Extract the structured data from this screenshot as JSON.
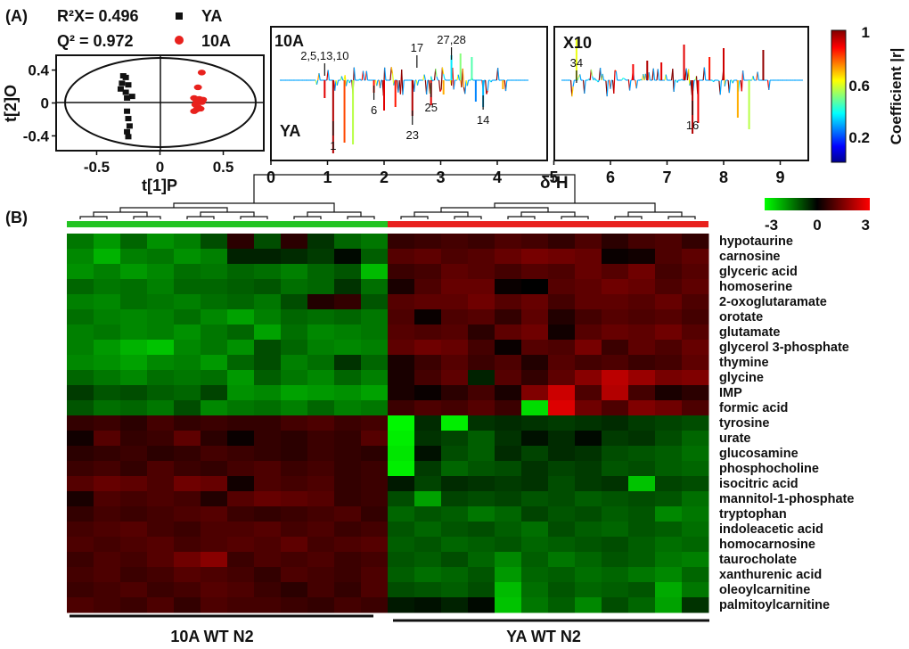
{
  "panel_labels": {
    "a": "(A)",
    "b": "(B)"
  },
  "chart_data": [
    {
      "type": "scatter",
      "name": "OPLS-DA score plot",
      "stats": {
        "r2x": "R²X= 0.496",
        "q2": "Q² = 0.972"
      },
      "xlabel": "t[1]P",
      "ylabel": "t[2]O",
      "xlim": [
        -0.82,
        0.82
      ],
      "ylim": [
        -0.58,
        0.58
      ],
      "xticks": [
        -0.5,
        0,
        0.5
      ],
      "xtick_labels": [
        "-0.5",
        "0",
        "0.5"
      ],
      "yticks": [
        0.4,
        0,
        -0.4
      ],
      "ytick_labels": [
        "0.4",
        "0",
        "-0.4"
      ],
      "legend": [
        {
          "label": "YA",
          "color": "#111111",
          "marker": "square"
        },
        {
          "label": "10A",
          "color": "#e8211d",
          "marker": "circle"
        }
      ],
      "series": [
        {
          "name": "YA",
          "color": "#111111",
          "x": [
            -0.29,
            -0.27,
            -0.3,
            -0.25,
            -0.31,
            -0.27,
            -0.26,
            -0.22,
            -0.26,
            -0.25,
            -0.24,
            -0.26,
            -0.25
          ],
          "y": [
            0.33,
            0.31,
            0.24,
            0.22,
            0.17,
            0.13,
            0.06,
            0.08,
            -0.1,
            -0.19,
            -0.28,
            -0.35,
            -0.41
          ]
        },
        {
          "name": "10A",
          "color": "#e8211d",
          "x": [
            0.33,
            0.3,
            0.27,
            0.31,
            0.34,
            0.29,
            0.33,
            0.28,
            0.3,
            0.32,
            0.29,
            0.27
          ],
          "y": [
            0.37,
            0.19,
            0.06,
            0.05,
            0.04,
            0.02,
            0.01,
            -0.02,
            -0.05,
            -0.07,
            -0.08,
            -0.1
          ]
        }
      ]
    },
    {
      "type": "line",
      "name": "OPLS-DA coefficient plot",
      "xlabel": "δ¹H",
      "xticks": [
        0,
        1,
        2,
        3,
        4,
        5,
        6,
        7,
        8,
        9
      ],
      "top_group": "10A",
      "bottom_group": "YA",
      "scale_note": "X10",
      "colorbar": {
        "title": "Coefficient |r|",
        "ticks": [
          "1",
          "0.6",
          "0.2"
        ]
      },
      "peak_labels": [
        {
          "text": "2,5,13,10",
          "ppm": 0.95
        },
        {
          "text": "17",
          "ppm": 2.58
        },
        {
          "text": "27,28",
          "ppm": 3.19
        },
        {
          "text": "34",
          "ppm": 5.4
        },
        {
          "text": "6",
          "ppm": 1.82
        },
        {
          "text": "25",
          "ppm": 2.83
        },
        {
          "text": "14",
          "ppm": 3.75
        },
        {
          "text": "1",
          "ppm": 1.1
        },
        {
          "text": "23",
          "ppm": 2.5
        },
        {
          "text": "16",
          "ppm": 7.45
        }
      ]
    },
    {
      "type": "heatmap",
      "name": "Metabolite heatmap",
      "colorbar_ticks": [
        "-3",
        "0",
        "3"
      ],
      "groups": [
        {
          "label": "10A WT N2",
          "color": "#22c322",
          "n": 12
        },
        {
          "label": "YA WT N2",
          "color": "#e8211d",
          "n": 12
        }
      ],
      "rows": [
        "hypotaurine",
        "carnosine",
        "glyceric acid",
        "homoserine",
        "2-oxoglutaramate",
        "orotate",
        "glutamate",
        "glycerol 3-phosphate",
        "thymine",
        "glycine",
        "IMP",
        "formic acid",
        "tyrosine",
        "urate",
        "glucosamine",
        "phosphocholine",
        "isocitric acid",
        "mannitol-1-phosphate",
        "tryptophan",
        "indoleacetic acid",
        "homocarnosine",
        "taurocholate",
        "xanthurenic acid",
        "oleoylcarnitine",
        "palmitoylcarnitine"
      ],
      "values": [
        [
          -1.4,
          -1.8,
          -1.2,
          -1.7,
          -1.5,
          -0.9,
          0.5,
          -0.9,
          0.5,
          -0.6,
          -1.2,
          -1.4,
          0.6,
          0.7,
          0.8,
          0.7,
          0.9,
          0.8,
          0.6,
          0.9,
          0.5,
          0.8,
          0.9,
          0.6
        ],
        [
          -1.6,
          -2.1,
          -1.5,
          -1.4,
          -1.7,
          -1.5,
          -0.4,
          -0.4,
          -0.5,
          -0.7,
          -0.1,
          -1.1,
          1.0,
          1.1,
          0.9,
          1.0,
          1.2,
          1.4,
          1.3,
          1.2,
          0.1,
          0.2,
          0.9,
          1.1
        ],
        [
          -1.7,
          -1.5,
          -1.8,
          -1.6,
          -1.3,
          -1.4,
          -1.2,
          -1.3,
          -1.5,
          -1.2,
          -1.0,
          -2.2,
          0.7,
          0.8,
          1.1,
          1.0,
          0.8,
          1.0,
          0.9,
          1.2,
          1.0,
          1.3,
          0.8,
          1.0
        ],
        [
          -1.2,
          -1.4,
          -1.3,
          -1.5,
          -1.2,
          -1.2,
          -1.1,
          -1.0,
          -1.3,
          -1.2,
          -0.6,
          -1.3,
          0.3,
          0.9,
          1.2,
          1.2,
          0.1,
          0.0,
          1.0,
          1.1,
          1.3,
          1.2,
          0.9,
          1.1
        ],
        [
          -1.5,
          -1.6,
          -1.3,
          -1.4,
          -1.5,
          -1.3,
          -1.2,
          -1.4,
          -0.9,
          0.4,
          0.6,
          -1.0,
          1.0,
          1.1,
          1.1,
          1.3,
          1.0,
          1.2,
          0.8,
          1.1,
          1.1,
          1.0,
          1.2,
          0.9
        ],
        [
          -1.3,
          -1.5,
          -1.6,
          -1.5,
          -1.3,
          -1.6,
          -1.9,
          -1.5,
          -1.2,
          -1.3,
          -1.2,
          -1.4,
          0.9,
          0.1,
          0.9,
          1.0,
          0.6,
          1.1,
          0.4,
          0.8,
          1.0,
          0.9,
          1.0,
          0.8
        ],
        [
          -1.5,
          -1.4,
          -1.6,
          -1.5,
          -1.7,
          -1.4,
          -1.2,
          -1.9,
          -1.3,
          -1.6,
          -1.5,
          -1.4,
          1.0,
          0.9,
          1.0,
          0.5,
          1.1,
          1.3,
          0.2,
          1.0,
          1.2,
          1.1,
          1.3,
          1.0
        ],
        [
          -1.5,
          -1.8,
          -2.1,
          -2.3,
          -1.6,
          -1.4,
          -1.7,
          -0.9,
          -1.2,
          -1.5,
          -1.6,
          -1.5,
          1.1,
          1.3,
          1.2,
          0.8,
          0.1,
          1.0,
          0.9,
          1.4,
          0.7,
          1.1,
          0.9,
          1.2
        ],
        [
          -1.6,
          -1.7,
          -1.9,
          -1.6,
          -1.5,
          -1.8,
          -1.2,
          -0.9,
          -1.5,
          -1.3,
          -0.6,
          -1.2,
          0.3,
          0.7,
          1.0,
          0.7,
          0.9,
          0.4,
          1.0,
          0.8,
          0.9,
          0.7,
          0.8,
          1.1
        ],
        [
          -1.2,
          -1.4,
          -1.6,
          -1.3,
          -1.4,
          -1.3,
          -1.8,
          -1.1,
          -1.4,
          -1.6,
          -1.2,
          -1.5,
          0.3,
          0.8,
          1.1,
          -0.4,
          1.0,
          0.6,
          1.1,
          1.6,
          2.2,
          1.8,
          1.4,
          1.5
        ],
        [
          -0.7,
          -1.0,
          -0.9,
          -1.1,
          -1.2,
          -0.8,
          -1.7,
          -1.6,
          -1.9,
          -1.8,
          -1.7,
          -1.9,
          0.3,
          0.1,
          0.5,
          0.8,
          0.3,
          1.5,
          2.4,
          0.9,
          2.1,
          0.8,
          0.3,
          0.5
        ],
        [
          -1.0,
          -1.3,
          -1.2,
          -1.4,
          -0.9,
          -1.6,
          -1.4,
          -1.3,
          -1.5,
          -1.2,
          -1.5,
          -1.4,
          0.7,
          0.9,
          0.8,
          1.0,
          0.7,
          -2.6,
          2.6,
          1.3,
          0.9,
          1.5,
          1.3,
          0.9
        ],
        [
          0.6,
          0.7,
          0.5,
          0.8,
          0.6,
          0.7,
          0.6,
          0.6,
          0.8,
          0.9,
          0.7,
          0.8,
          -2.9,
          -0.5,
          -2.8,
          -0.6,
          -0.5,
          -0.6,
          -0.7,
          -0.6,
          -0.5,
          -0.7,
          -0.8,
          -0.9
        ],
        [
          0.2,
          1.0,
          0.6,
          0.7,
          1.1,
          0.5,
          0.1,
          0.6,
          0.5,
          0.7,
          0.6,
          1.0,
          -2.8,
          -0.6,
          -0.8,
          -1.1,
          -0.6,
          -0.2,
          -0.5,
          -0.1,
          -0.7,
          -0.6,
          -0.9,
          -1.2
        ],
        [
          0.5,
          0.6,
          0.7,
          0.5,
          0.6,
          0.8,
          0.7,
          0.6,
          0.5,
          0.7,
          0.6,
          0.5,
          -2.7,
          -0.2,
          -0.9,
          -1.1,
          -0.5,
          -0.8,
          -0.5,
          -0.6,
          -0.9,
          -1.0,
          -1.1,
          -1.3
        ],
        [
          0.7,
          0.8,
          0.6,
          0.9,
          0.7,
          0.6,
          0.8,
          0.9,
          0.7,
          0.8,
          0.6,
          0.7,
          -2.8,
          -0.7,
          -1.2,
          -1.0,
          -0.9,
          -0.6,
          -0.8,
          -0.7,
          -1.0,
          -0.9,
          -1.1,
          -1.2
        ],
        [
          1.0,
          1.2,
          1.1,
          0.9,
          1.3,
          1.2,
          0.2,
          0.9,
          0.8,
          0.9,
          0.6,
          0.7,
          -0.3,
          -0.8,
          -0.5,
          -0.6,
          -0.7,
          -0.6,
          -0.9,
          -0.7,
          -0.6,
          -2.3,
          -0.8,
          -0.9
        ],
        [
          0.3,
          0.9,
          0.8,
          0.9,
          0.8,
          0.4,
          1.0,
          1.2,
          1.1,
          1.0,
          0.6,
          0.7,
          -0.9,
          -1.9,
          -0.8,
          -0.9,
          -0.8,
          -1.0,
          -0.9,
          -1.1,
          -1.0,
          -0.9,
          -1.0,
          -1.3
        ],
        [
          0.6,
          0.8,
          0.7,
          0.8,
          0.9,
          1.0,
          0.7,
          0.6,
          0.7,
          0.8,
          0.9,
          0.6,
          -1.2,
          -1.0,
          -1.1,
          -1.4,
          -1.2,
          -0.8,
          -1.0,
          -0.9,
          -1.1,
          -1.0,
          -1.6,
          -1.4
        ],
        [
          0.8,
          0.9,
          1.0,
          0.8,
          0.7,
          0.9,
          0.9,
          1.0,
          0.8,
          0.9,
          0.7,
          0.8,
          -1.0,
          -1.2,
          -1.0,
          -0.9,
          -1.1,
          -1.3,
          -0.9,
          -1.1,
          -1.2,
          -1.0,
          -1.1,
          -1.3
        ],
        [
          0.9,
          0.8,
          0.9,
          1.0,
          0.8,
          0.9,
          1.0,
          0.9,
          1.1,
          0.8,
          0.9,
          1.0,
          -1.1,
          -1.0,
          -1.2,
          -1.1,
          -1.0,
          -1.2,
          -1.1,
          -1.0,
          -0.9,
          -1.1,
          -1.3,
          -1.2
        ],
        [
          0.7,
          0.9,
          0.8,
          1.0,
          1.3,
          1.6,
          0.7,
          0.9,
          0.8,
          0.9,
          0.7,
          0.8,
          -1.0,
          -1.1,
          -0.9,
          -1.2,
          -1.6,
          -1.1,
          -1.4,
          -1.2,
          -1.0,
          -1.1,
          -1.4,
          -1.5
        ],
        [
          0.8,
          0.9,
          0.7,
          0.8,
          1.0,
          0.9,
          0.8,
          0.6,
          0.9,
          0.8,
          0.7,
          0.9,
          -1.1,
          -1.3,
          -1.2,
          -1.0,
          -1.8,
          -1.2,
          -1.1,
          -1.3,
          -1.2,
          -1.4,
          -1.6,
          -1.2
        ],
        [
          0.7,
          0.8,
          0.9,
          0.7,
          0.8,
          1.0,
          0.9,
          0.7,
          0.5,
          0.8,
          0.6,
          0.9,
          -0.9,
          -1.0,
          -1.1,
          -0.9,
          -2.2,
          -1.3,
          -1.0,
          -1.2,
          -1.1,
          -1.0,
          -2.0,
          -1.4
        ],
        [
          0.9,
          0.8,
          0.7,
          0.9,
          0.6,
          0.9,
          0.8,
          0.8,
          0.7,
          0.6,
          0.8,
          0.7,
          -0.3,
          -0.2,
          -0.4,
          -0.1,
          -2.3,
          -1.4,
          -1.1,
          -1.6,
          -0.9,
          -1.2,
          -1.9,
          -0.6
        ]
      ]
    }
  ]
}
